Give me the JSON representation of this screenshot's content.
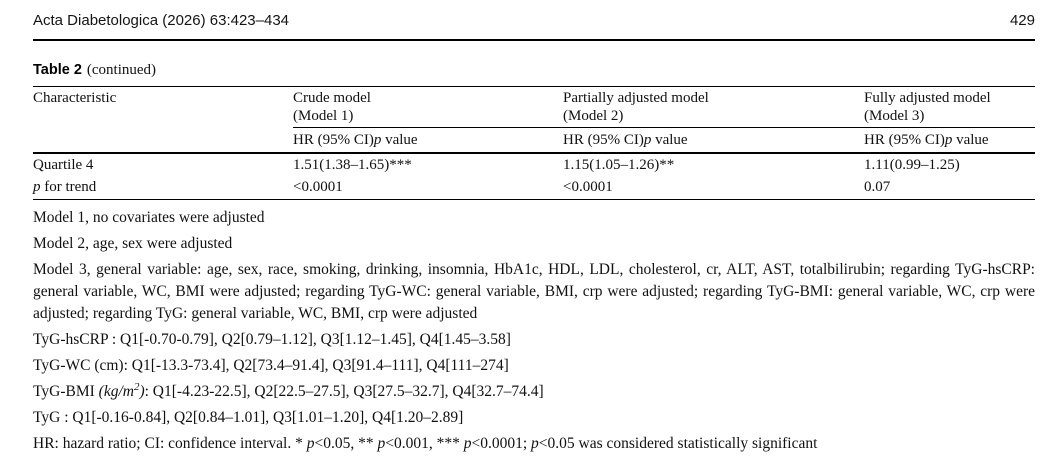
{
  "page": {
    "journal_ref": "Acta Diabetologica (2026) 63:423–434",
    "page_number": "429"
  },
  "table": {
    "caption": {
      "label": "Table 2",
      "continued": "(continued)"
    },
    "col_characteristic": "Characteristic",
    "models": [
      {
        "name": "Crude model",
        "sub": "(Model 1)"
      },
      {
        "name": "Partially adjusted model",
        "sub": "(Model 2)"
      },
      {
        "name": "Fully adjusted model",
        "sub": "(Model 3)"
      }
    ],
    "subheader_segments": [
      {
        "t": "HR (95% CI)"
      },
      {
        "t": "p",
        "i": true
      },
      {
        "t": " value"
      }
    ],
    "rows": [
      {
        "label_segments": [
          {
            "t": "Quartile 4"
          }
        ],
        "values": [
          "1.51(1.38–1.65)***",
          "1.15(1.05–1.26)**",
          "1.11(0.99–1.25)"
        ]
      },
      {
        "label_segments": [
          {
            "t": "p",
            "i": true
          },
          {
            "t": " for trend"
          }
        ],
        "values": [
          "<0.0001",
          "<0.0001",
          "0.07"
        ]
      }
    ]
  },
  "footnotes": {
    "model1": "Model 1, no covariates were adjusted",
    "model2": "Model 2, age, sex were adjusted",
    "model3": "Model 3, general variable: age, sex, race, smoking, drinking, insomnia, HbA1c, HDL, LDL, cholesterol, cr, ALT, AST, totalbilirubin; regarding TyG-hsCRP: general variable, WC, BMI were adjusted; regarding TyG-WC: general variable, BMI, crp were adjusted; regarding TyG-BMI: general variable, WC, crp were adjusted; regarding TyG: general variable, WC, BMI, crp were adjusted",
    "tyg_hscrp": "TyG-hsCRP : Q1[-0.70-0.79], Q2[0.79–1.12], Q3[1.12–1.45], Q4[1.45–3.58]",
    "tyg_wc": "TyG-WC (cm): Q1[-13.3-73.4], Q2[73.4–91.4], Q3[91.4–111], Q4[111–274]",
    "tyg_bmi_segments": [
      {
        "t": "TyG-BMI "
      },
      {
        "t": "(kg/m",
        "i": true
      },
      {
        "t": "2",
        "i": true,
        "sup": true
      },
      {
        "t": ")",
        "i": true
      },
      {
        "t": ": Q1[-4.23-22.5], Q2[22.5–27.5], Q3[27.5–32.7], Q4[32.7–74.4]"
      }
    ],
    "tyg": "TyG : Q1[-0.16-0.84], Q2[0.84–1.01], Q3[1.01–1.20], Q4[1.20–2.89]",
    "abbrev_segments": [
      {
        "t": "HR: hazard ratio; CI: confidence interval. * "
      },
      {
        "t": "p",
        "i": true
      },
      {
        "t": "<0.05, ** "
      },
      {
        "t": "p",
        "i": true
      },
      {
        "t": "<0.001, *** "
      },
      {
        "t": "p",
        "i": true
      },
      {
        "t": "<0.0001; "
      },
      {
        "t": "p",
        "i": true
      },
      {
        "t": "<0.05 was considered statistically significant"
      }
    ]
  }
}
